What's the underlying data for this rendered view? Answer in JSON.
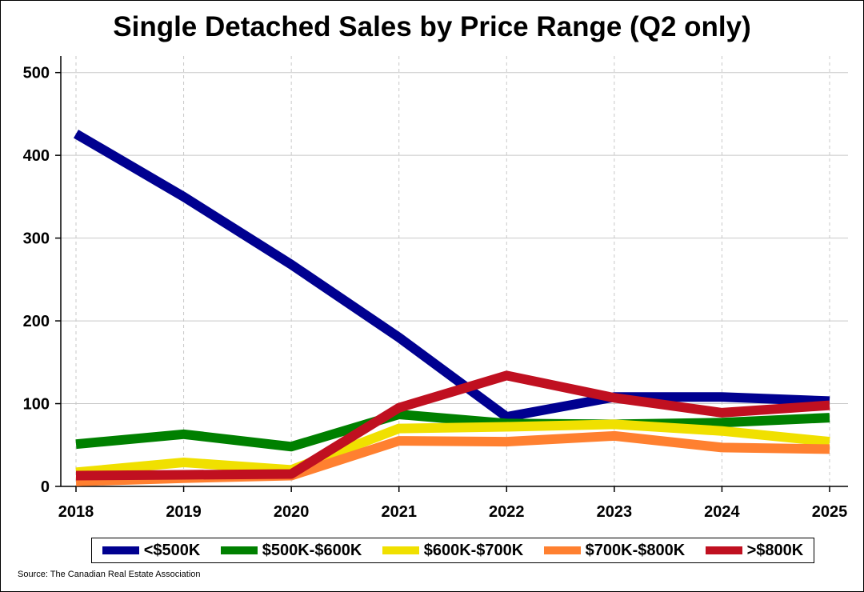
{
  "chart_data": {
    "type": "line",
    "title": "Single Detached Sales by Price Range (Q2 only)",
    "xlabel": "",
    "ylabel": "",
    "x": [
      "2018",
      "2019",
      "2020",
      "2021",
      "2022",
      "2023",
      "2024",
      "2025"
    ],
    "ylim": [
      0,
      520
    ],
    "yticks": [
      "0",
      "100",
      "200",
      "300",
      "400",
      "500"
    ],
    "grid": true,
    "legend_position": "bottom",
    "series": [
      {
        "name": "<$500K",
        "color": "#000090",
        "values": [
          426,
          350,
          268,
          180,
          84,
          108,
          108,
          103
        ]
      },
      {
        "name": "$500K-$600K",
        "color": "#008000",
        "values": [
          51,
          63,
          48,
          87,
          76,
          75,
          77,
          83
        ]
      },
      {
        "name": "$600K-$700K",
        "color": "#f0e000",
        "values": [
          17,
          29,
          20,
          70,
          72,
          75,
          67,
          54
        ]
      },
      {
        "name": "$700K-$800K",
        "color": "#ff8030",
        "values": [
          6,
          10,
          13,
          55,
          54,
          61,
          47,
          45
        ]
      },
      {
        "name": ">$800K",
        "color": "#c01020",
        "values": [
          13,
          14,
          15,
          95,
          134,
          107,
          89,
          98
        ]
      }
    ],
    "source": "Source: The Canadian Real Estate Association"
  }
}
